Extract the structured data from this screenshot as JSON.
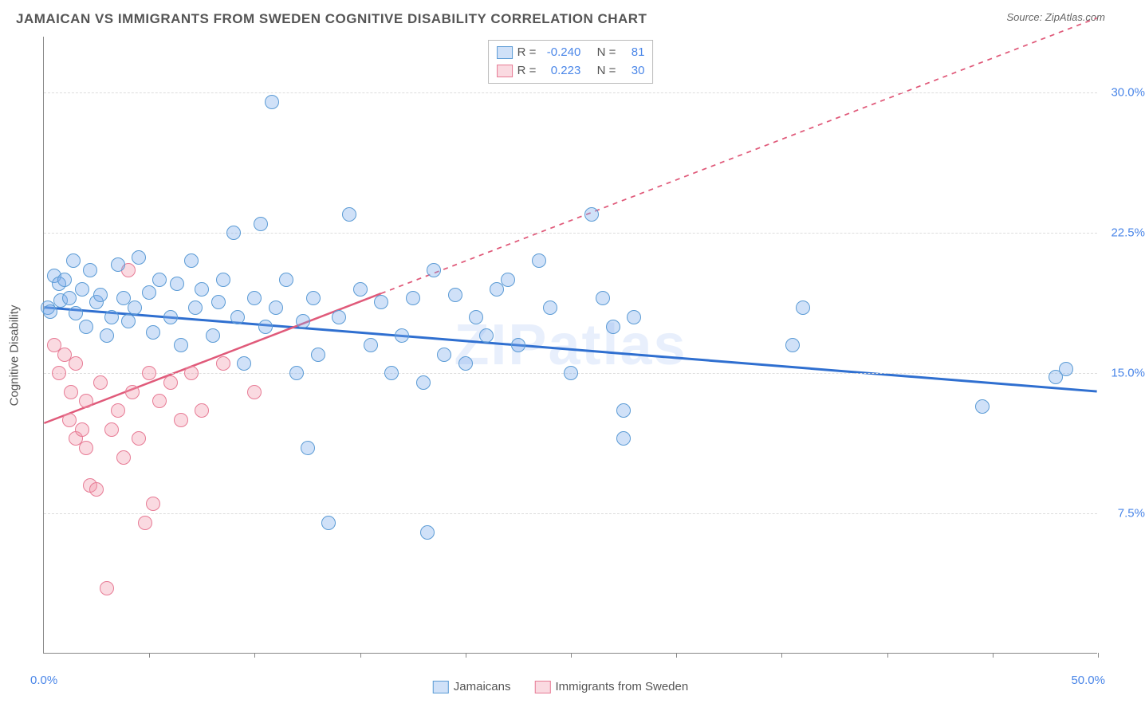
{
  "title": "JAMAICAN VS IMMIGRANTS FROM SWEDEN COGNITIVE DISABILITY CORRELATION CHART",
  "source_label": "Source: ",
  "source_name": "ZipAtlas.com",
  "watermark_text": "ZIPatlas",
  "ylabel": "Cognitive Disability",
  "chart": {
    "type": "scatter",
    "background_color": "#ffffff",
    "grid_color": "#dddddd",
    "axis_color": "#888888",
    "marker_radius": 9,
    "marker_stroke_width": 1.5,
    "xlim": [
      0,
      50
    ],
    "ylim": [
      0,
      33
    ],
    "yticks": [
      7.5,
      15.0,
      22.5,
      30.0
    ],
    "ytick_labels": [
      "7.5%",
      "15.0%",
      "22.5%",
      "30.0%"
    ],
    "xticks": [
      5,
      10,
      15,
      20,
      25,
      30,
      35,
      40,
      45,
      50
    ],
    "xmin_label": "0.0%",
    "xmax_label": "50.0%",
    "ytick_label_color": "#4a86e8",
    "xlabel_color": "#4a86e8"
  },
  "series": {
    "jamaicans": {
      "label": "Jamaicans",
      "fill_color": "rgba(120,170,235,0.35)",
      "stroke_color": "#5b9bd5",
      "trend_color": "#2f6fd0",
      "trend_width": 3,
      "trend_start": {
        "x": 0.0,
        "y": 18.5
      },
      "trend_end": {
        "x": 50.0,
        "y": 14.0
      },
      "trend_dash_after_x": 50.0,
      "R": "-0.240",
      "N": "81",
      "points": [
        {
          "x": 0.2,
          "y": 18.5
        },
        {
          "x": 0.3,
          "y": 18.3
        },
        {
          "x": 0.5,
          "y": 20.2
        },
        {
          "x": 0.7,
          "y": 19.8
        },
        {
          "x": 0.8,
          "y": 18.9
        },
        {
          "x": 1.0,
          "y": 20.0
        },
        {
          "x": 1.2,
          "y": 19.0
        },
        {
          "x": 1.4,
          "y": 21.0
        },
        {
          "x": 1.5,
          "y": 18.2
        },
        {
          "x": 1.8,
          "y": 19.5
        },
        {
          "x": 2.0,
          "y": 17.5
        },
        {
          "x": 2.2,
          "y": 20.5
        },
        {
          "x": 2.5,
          "y": 18.8
        },
        {
          "x": 2.7,
          "y": 19.2
        },
        {
          "x": 3.0,
          "y": 17.0
        },
        {
          "x": 3.2,
          "y": 18.0
        },
        {
          "x": 3.5,
          "y": 20.8
        },
        {
          "x": 3.8,
          "y": 19.0
        },
        {
          "x": 4.0,
          "y": 17.8
        },
        {
          "x": 4.3,
          "y": 18.5
        },
        {
          "x": 4.5,
          "y": 21.2
        },
        {
          "x": 5.0,
          "y": 19.3
        },
        {
          "x": 5.2,
          "y": 17.2
        },
        {
          "x": 5.5,
          "y": 20.0
        },
        {
          "x": 6.0,
          "y": 18.0
        },
        {
          "x": 6.3,
          "y": 19.8
        },
        {
          "x": 6.5,
          "y": 16.5
        },
        {
          "x": 7.0,
          "y": 21.0
        },
        {
          "x": 7.2,
          "y": 18.5
        },
        {
          "x": 7.5,
          "y": 19.5
        },
        {
          "x": 8.0,
          "y": 17.0
        },
        {
          "x": 8.3,
          "y": 18.8
        },
        {
          "x": 8.5,
          "y": 20.0
        },
        {
          "x": 9.0,
          "y": 22.5
        },
        {
          "x": 9.2,
          "y": 18.0
        },
        {
          "x": 9.5,
          "y": 15.5
        },
        {
          "x": 10.0,
          "y": 19.0
        },
        {
          "x": 10.3,
          "y": 23.0
        },
        {
          "x": 10.5,
          "y": 17.5
        },
        {
          "x": 10.8,
          "y": 29.5
        },
        {
          "x": 11.0,
          "y": 18.5
        },
        {
          "x": 11.5,
          "y": 20.0
        },
        {
          "x": 12.0,
          "y": 15.0
        },
        {
          "x": 12.3,
          "y": 17.8
        },
        {
          "x": 12.5,
          "y": 11.0
        },
        {
          "x": 12.8,
          "y": 19.0
        },
        {
          "x": 13.0,
          "y": 16.0
        },
        {
          "x": 13.5,
          "y": 7.0
        },
        {
          "x": 14.0,
          "y": 18.0
        },
        {
          "x": 14.5,
          "y": 23.5
        },
        {
          "x": 15.0,
          "y": 19.5
        },
        {
          "x": 15.5,
          "y": 16.5
        },
        {
          "x": 16.0,
          "y": 18.8
        },
        {
          "x": 16.5,
          "y": 15.0
        },
        {
          "x": 17.0,
          "y": 17.0
        },
        {
          "x": 17.5,
          "y": 19.0
        },
        {
          "x": 18.0,
          "y": 14.5
        },
        {
          "x": 18.2,
          "y": 6.5
        },
        {
          "x": 18.5,
          "y": 20.5
        },
        {
          "x": 19.0,
          "y": 16.0
        },
        {
          "x": 19.5,
          "y": 19.2
        },
        {
          "x": 20.0,
          "y": 15.5
        },
        {
          "x": 20.5,
          "y": 18.0
        },
        {
          "x": 21.0,
          "y": 17.0
        },
        {
          "x": 21.5,
          "y": 19.5
        },
        {
          "x": 22.0,
          "y": 20.0
        },
        {
          "x": 22.5,
          "y": 16.5
        },
        {
          "x": 23.5,
          "y": 21.0
        },
        {
          "x": 24.0,
          "y": 18.5
        },
        {
          "x": 25.0,
          "y": 15.0
        },
        {
          "x": 26.0,
          "y": 23.5
        },
        {
          "x": 26.5,
          "y": 19.0
        },
        {
          "x": 27.0,
          "y": 17.5
        },
        {
          "x": 27.5,
          "y": 11.5
        },
        {
          "x": 27.5,
          "y": 13.0
        },
        {
          "x": 28.0,
          "y": 18.0
        },
        {
          "x": 35.5,
          "y": 16.5
        },
        {
          "x": 36.0,
          "y": 18.5
        },
        {
          "x": 44.5,
          "y": 13.2
        },
        {
          "x": 48.0,
          "y": 14.8
        },
        {
          "x": 48.5,
          "y": 15.2
        }
      ]
    },
    "sweden": {
      "label": "Immigrants from Sweden",
      "fill_color": "rgba(240,150,170,0.35)",
      "stroke_color": "#e77b95",
      "trend_color": "#e05a7a",
      "trend_width": 2.5,
      "trend_start": {
        "x": 0.0,
        "y": 12.3
      },
      "trend_end": {
        "x": 50.0,
        "y": 34.0
      },
      "trend_dash_after_x": 16.0,
      "R": "0.223",
      "N": "30",
      "points": [
        {
          "x": 0.5,
          "y": 16.5
        },
        {
          "x": 0.7,
          "y": 15.0
        },
        {
          "x": 1.0,
          "y": 16.0
        },
        {
          "x": 1.2,
          "y": 12.5
        },
        {
          "x": 1.3,
          "y": 14.0
        },
        {
          "x": 1.5,
          "y": 11.5
        },
        {
          "x": 1.5,
          "y": 15.5
        },
        {
          "x": 1.8,
          "y": 12.0
        },
        {
          "x": 2.0,
          "y": 13.5
        },
        {
          "x": 2.0,
          "y": 11.0
        },
        {
          "x": 2.2,
          "y": 9.0
        },
        {
          "x": 2.5,
          "y": 8.8
        },
        {
          "x": 2.7,
          "y": 14.5
        },
        {
          "x": 3.0,
          "y": 3.5
        },
        {
          "x": 3.2,
          "y": 12.0
        },
        {
          "x": 3.5,
          "y": 13.0
        },
        {
          "x": 3.8,
          "y": 10.5
        },
        {
          "x": 4.0,
          "y": 20.5
        },
        {
          "x": 4.2,
          "y": 14.0
        },
        {
          "x": 4.5,
          "y": 11.5
        },
        {
          "x": 4.8,
          "y": 7.0
        },
        {
          "x": 5.0,
          "y": 15.0
        },
        {
          "x": 5.2,
          "y": 8.0
        },
        {
          "x": 5.5,
          "y": 13.5
        },
        {
          "x": 6.0,
          "y": 14.5
        },
        {
          "x": 6.5,
          "y": 12.5
        },
        {
          "x": 7.0,
          "y": 15.0
        },
        {
          "x": 7.5,
          "y": 13.0
        },
        {
          "x": 8.5,
          "y": 15.5
        },
        {
          "x": 10.0,
          "y": 14.0
        }
      ]
    }
  },
  "stats_legend": {
    "R_label": "R =",
    "N_label": "N ="
  }
}
